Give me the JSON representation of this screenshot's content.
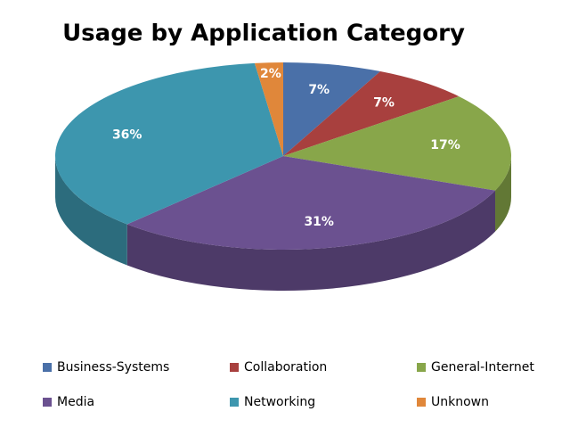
{
  "chart_data": {
    "type": "pie",
    "title": "Usage by Application Category",
    "categories": [
      "Business-Systems",
      "Collaboration",
      "General-Internet",
      "Media",
      "Networking",
      "Unknown"
    ],
    "values": [
      7,
      7,
      17,
      31,
      36,
      2
    ],
    "value_labels": [
      "7%",
      "7%",
      "17%",
      "31%",
      "36%",
      "2%"
    ],
    "colors": [
      "#4a70a8",
      "#a8403e",
      "#88a64a",
      "#6b5190",
      "#3d96ae",
      "#e0873a"
    ],
    "legend": "bottom"
  }
}
